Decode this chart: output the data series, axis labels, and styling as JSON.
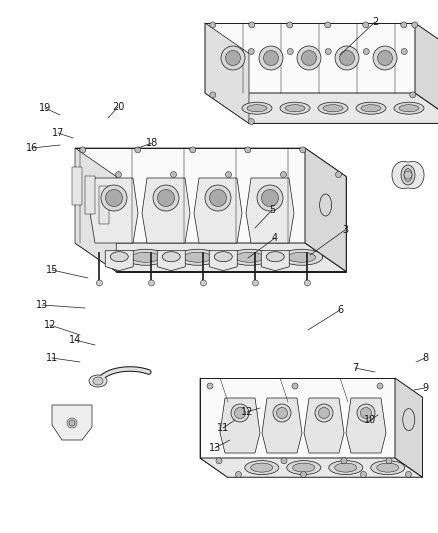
{
  "background_color": "#ffffff",
  "fig_width": 4.38,
  "fig_height": 5.33,
  "dpi": 100,
  "line_color": "#1a1a1a",
  "text_color": "#1a1a1a",
  "font_size": 7.0,
  "face_color": "#f0f0f0",
  "face_color_dark": "#d8d8d8",
  "face_color_light": "#fafafa",
  "face_color_mid": "#e8e8e8"
}
